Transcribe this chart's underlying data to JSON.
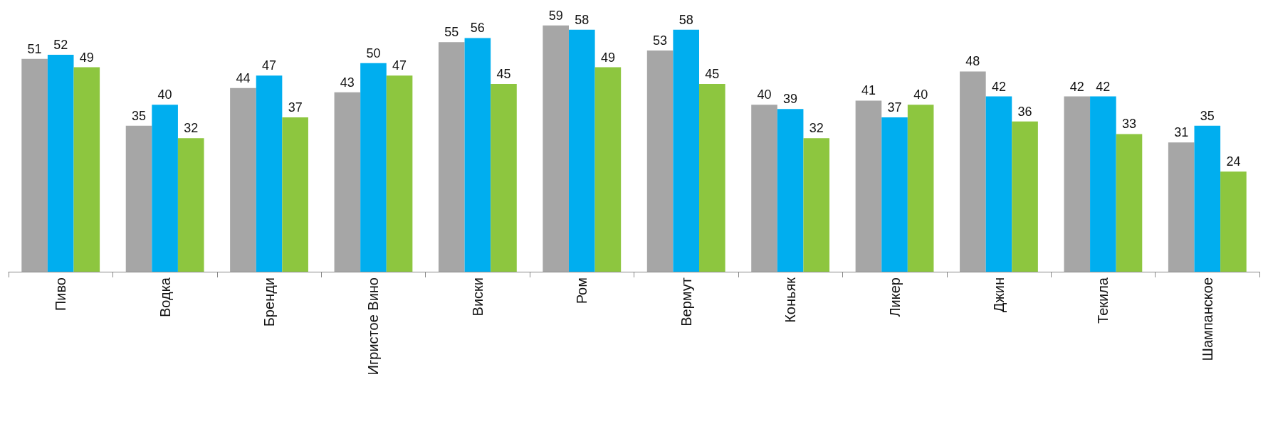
{
  "chart_data": {
    "type": "bar",
    "categories": [
      "Пиво",
      "Водка",
      "Бренди",
      "Игристое Вино",
      "Виски",
      "Ром",
      "Вермут",
      "Коньяк",
      "Ликер",
      "Джин",
      "Текила",
      "Шампанское"
    ],
    "series": [
      {
        "color": "#a6a6a6",
        "values": [
          51,
          35,
          44,
          43,
          55,
          59,
          53,
          40,
          41,
          48,
          42,
          31
        ]
      },
      {
        "color": "#00aeef",
        "values": [
          52,
          40,
          47,
          50,
          56,
          58,
          58,
          39,
          37,
          42,
          42,
          35
        ]
      },
      {
        "color": "#8dc63f",
        "values": [
          49,
          32,
          37,
          47,
          45,
          49,
          45,
          32,
          40,
          36,
          33,
          24
        ]
      }
    ],
    "data_labels": true
  }
}
